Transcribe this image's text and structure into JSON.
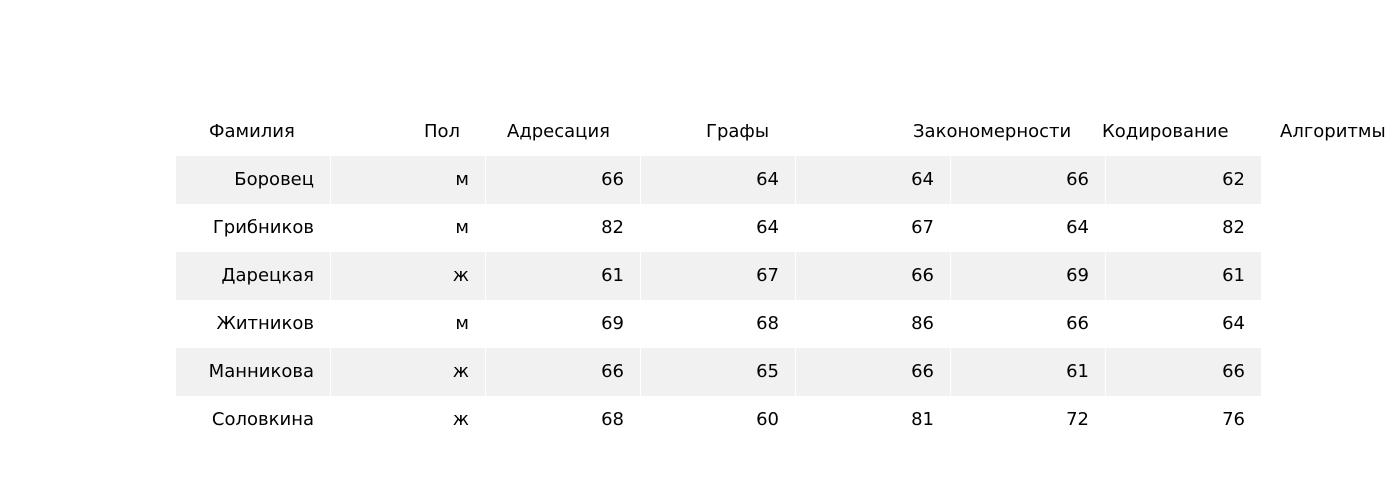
{
  "chart_data": {
    "type": "table",
    "columns": [
      "Фамилия",
      "Пол",
      "Адресация",
      "Графы",
      "Закономерности",
      "Кодирование",
      "Алгоритмы"
    ],
    "rows": [
      [
        "Боровец",
        "м",
        "66",
        "64",
        "64",
        "66",
        "62"
      ],
      [
        "Грибников",
        "м",
        "82",
        "64",
        "67",
        "64",
        "82"
      ],
      [
        "Дарецкая",
        "ж",
        "61",
        "67",
        "66",
        "69",
        "61"
      ],
      [
        "Житников",
        "м",
        "69",
        "68",
        "86",
        "66",
        "64"
      ],
      [
        "Манникова",
        "ж",
        "66",
        "65",
        "66",
        "61",
        "66"
      ],
      [
        "Соловкина",
        "ж",
        "68",
        "60",
        "81",
        "72",
        "76"
      ]
    ]
  },
  "colors": {
    "row_stripe": "#f1f1f1",
    "row_plain": "#ffffff",
    "text": "#000000"
  }
}
